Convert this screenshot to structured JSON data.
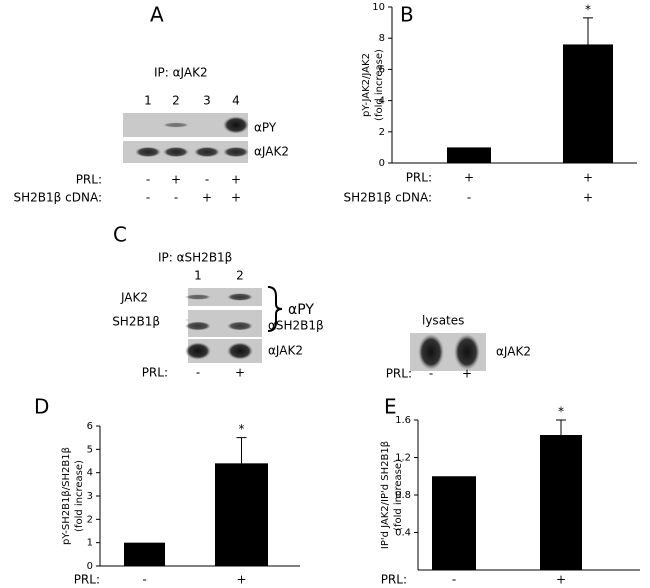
{
  "panels": {
    "A": {
      "letter": "A",
      "ip": "IP: αJAK2",
      "lanes": [
        "1",
        "2",
        "3",
        "4"
      ],
      "blots": [
        "αPY",
        "αJAK2"
      ],
      "conditions": [
        {
          "label": "PRL:",
          "signs": [
            "-",
            "+",
            "-",
            "+"
          ]
        },
        {
          "label": "SH2B1β cDNA:",
          "signs": [
            "-",
            "-",
            "+",
            "+"
          ]
        }
      ]
    },
    "C": {
      "letter": "C",
      "ip": "IP: αSH2B1β",
      "lanes": [
        "1",
        "2"
      ],
      "band_labels": [
        "JAK2",
        "SH2B1β"
      ],
      "bracket_label": "αPY",
      "blots": [
        "αSH2B1β",
        "αJAK2"
      ],
      "conditions": [
        {
          "label": "PRL:",
          "signs": [
            "-",
            "+"
          ]
        }
      ],
      "lysates": {
        "title": "lysates",
        "blot": "αJAK2",
        "conditions": [
          {
            "label": "PRL:",
            "signs": [
              "-",
              "+"
            ]
          }
        ]
      }
    }
  },
  "chart_data": [
    {
      "type": "bar",
      "letter": "B",
      "y_label": [
        "pY-JAK2/JAK2",
        "(fold increase)"
      ],
      "values": [
        1,
        7.6
      ],
      "errors": [
        null,
        1.7
      ],
      "annotations": [
        null,
        "*"
      ],
      "color": "#000000",
      "ylim": [
        0,
        10
      ],
      "yticks": [
        0,
        2,
        4,
        6,
        8,
        10
      ],
      "conditions": [
        {
          "label": "PRL:",
          "signs": [
            "+",
            "+"
          ]
        },
        {
          "label": "SH2B1β cDNA:",
          "signs": [
            "-",
            "+"
          ]
        }
      ]
    },
    {
      "type": "bar",
      "letter": "D",
      "y_label": [
        "pY-SH2B1β/SH2B1β",
        "(fold increase)"
      ],
      "values": [
        1,
        4.4
      ],
      "errors": [
        null,
        1.1
      ],
      "annotations": [
        null,
        "*"
      ],
      "color": "#000000",
      "ylim": [
        0,
        6
      ],
      "yticks": [
        0,
        1,
        2,
        3,
        4,
        5,
        6
      ],
      "conditions": [
        {
          "label": "PRL:",
          "signs": [
            "-",
            "+"
          ]
        }
      ]
    },
    {
      "type": "bar",
      "letter": "E",
      "y_label": [
        "IP'd JAK2/IP'd SH2B1β",
        "(fold increase)"
      ],
      "values": [
        1,
        1.44
      ],
      "errors": [
        null,
        0.16
      ],
      "annotations": [
        null,
        "*"
      ],
      "color": "#000000",
      "ylim": [
        0,
        1.6
      ],
      "yticks": [
        0.4,
        0.8,
        1.2,
        1.6
      ],
      "conditions": [
        {
          "label": "PRL:",
          "signs": [
            "-",
            "+"
          ]
        }
      ]
    }
  ]
}
